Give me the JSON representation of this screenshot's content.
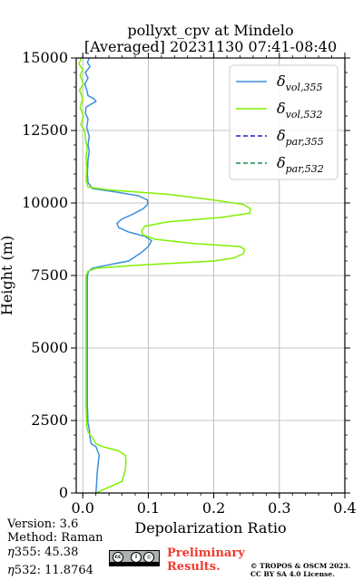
{
  "chart_data": {
    "type": "line",
    "title_line1": "pollyxt_cpv at Mindelo",
    "title_line2": "[Averaged] 20231130 07:41-08:40",
    "xlabel": "Depolarization Ratio",
    "ylabel": "Height (m)",
    "xlim": [
      -0.01,
      0.4
    ],
    "ylim": [
      0,
      15000
    ],
    "xticks": [
      0.0,
      0.1,
      0.2,
      0.3,
      0.4
    ],
    "xtick_labels": [
      "0.0",
      "0.1",
      "0.2",
      "0.3",
      "0.4"
    ],
    "yticks": [
      0,
      2500,
      5000,
      7500,
      10000,
      12500,
      15000
    ],
    "ytick_labels": [
      "0",
      "2500",
      "5000",
      "7500",
      "10000",
      "12500",
      "15000"
    ],
    "grid": true,
    "legend_position": "top-right",
    "series": [
      {
        "legend_base": "δ",
        "legend_sub": "vol,355",
        "color": "#3a8fe0",
        "style": "solid",
        "points": [
          [
            0.02,
            0
          ],
          [
            0.021,
            300
          ],
          [
            0.022,
            700
          ],
          [
            0.024,
            1100
          ],
          [
            0.025,
            1300
          ],
          [
            0.02,
            1600
          ],
          [
            0.013,
            1700
          ],
          [
            0.011,
            1900
          ],
          [
            0.01,
            2200
          ],
          [
            0.008,
            2400
          ],
          [
            0.007,
            3000
          ],
          [
            0.007,
            4000
          ],
          [
            0.007,
            5000
          ],
          [
            0.007,
            6000
          ],
          [
            0.007,
            7000
          ],
          [
            0.007,
            7500
          ],
          [
            0.009,
            7650
          ],
          [
            0.015,
            7750
          ],
          [
            0.035,
            7850
          ],
          [
            0.07,
            8000
          ],
          [
            0.09,
            8300
          ],
          [
            0.1,
            8500
          ],
          [
            0.105,
            8700
          ],
          [
            0.095,
            8850
          ],
          [
            0.07,
            9000
          ],
          [
            0.055,
            9150
          ],
          [
            0.052,
            9300
          ],
          [
            0.06,
            9450
          ],
          [
            0.075,
            9600
          ],
          [
            0.092,
            9800
          ],
          [
            0.099,
            9950
          ],
          [
            0.099,
            10100
          ],
          [
            0.085,
            10250
          ],
          [
            0.045,
            10400
          ],
          [
            0.015,
            10500
          ],
          [
            0.008,
            10700
          ],
          [
            0.007,
            11000
          ],
          [
            0.008,
            11500
          ],
          [
            0.01,
            11800
          ],
          [
            0.008,
            12000
          ],
          [
            0.01,
            12300
          ],
          [
            0.006,
            12600
          ],
          [
            0.008,
            12900
          ],
          [
            0.004,
            13100
          ],
          [
            0.005,
            13300
          ],
          [
            0.012,
            13400
          ],
          [
            0.02,
            13500
          ],
          [
            0.017,
            13600
          ],
          [
            0.008,
            13700
          ],
          [
            0.006,
            13900
          ],
          [
            0.003,
            14100
          ],
          [
            0.008,
            14300
          ],
          [
            0.004,
            14500
          ],
          [
            0.011,
            14700
          ],
          [
            0.007,
            14850
          ],
          [
            0.01,
            15000
          ]
        ]
      },
      {
        "legend_base": "δ",
        "legend_sub": "vol,532",
        "color": "#7ff000",
        "style": "solid",
        "points": [
          [
            0.02,
            0
          ],
          [
            0.035,
            150
          ],
          [
            0.06,
            400
          ],
          [
            0.065,
            800
          ],
          [
            0.066,
            1100
          ],
          [
            0.065,
            1300
          ],
          [
            0.055,
            1450
          ],
          [
            0.03,
            1600
          ],
          [
            0.02,
            1700
          ],
          [
            0.015,
            1900
          ],
          [
            0.008,
            2100
          ],
          [
            0.006,
            2300
          ],
          [
            0.005,
            3000
          ],
          [
            0.005,
            4000
          ],
          [
            0.005,
            5000
          ],
          [
            0.005,
            6000
          ],
          [
            0.005,
            7000
          ],
          [
            0.005,
            7500
          ],
          [
            0.008,
            7650
          ],
          [
            0.02,
            7750
          ],
          [
            0.08,
            7850
          ],
          [
            0.16,
            7950
          ],
          [
            0.2,
            8000
          ],
          [
            0.23,
            8100
          ],
          [
            0.245,
            8250
          ],
          [
            0.247,
            8400
          ],
          [
            0.24,
            8500
          ],
          [
            0.17,
            8600
          ],
          [
            0.11,
            8750
          ],
          [
            0.092,
            8900
          ],
          [
            0.09,
            9050
          ],
          [
            0.095,
            9200
          ],
          [
            0.13,
            9350
          ],
          [
            0.21,
            9500
          ],
          [
            0.255,
            9650
          ],
          [
            0.256,
            9800
          ],
          [
            0.245,
            9950
          ],
          [
            0.2,
            10100
          ],
          [
            0.13,
            10300
          ],
          [
            0.04,
            10450
          ],
          [
            0.008,
            10550
          ],
          [
            0.005,
            10800
          ],
          [
            0.006,
            11200
          ],
          [
            0.005,
            11600
          ],
          [
            0.007,
            11900
          ],
          [
            0.004,
            12200
          ],
          [
            0.003,
            12500
          ],
          [
            -0.003,
            12700
          ],
          [
            0.001,
            13000
          ],
          [
            -0.004,
            13300
          ],
          [
            0.0,
            13600
          ],
          [
            -0.005,
            13900
          ],
          [
            0.001,
            14100
          ],
          [
            -0.004,
            14400
          ],
          [
            0.0,
            14600
          ],
          [
            -0.006,
            14800
          ],
          [
            -0.002,
            15000
          ]
        ]
      },
      {
        "legend_base": "δ",
        "legend_sub": "par,355",
        "color": "#1f1fc8",
        "style": "dashed",
        "points": []
      },
      {
        "legend_base": "δ",
        "legend_sub": "par,532",
        "color": "#1a8a4a",
        "style": "dashed",
        "points": []
      }
    ]
  },
  "footer": {
    "version": "Version: 3.6",
    "method": "Method: Raman",
    "eta355_sym": "η",
    "eta355_sub": "355",
    "eta355_value": ": 45.38",
    "eta532_sym": "η",
    "eta532_sub": "532",
    "eta532_value": ": 11.8764",
    "preliminary_line1": "Preliminary",
    "preliminary_line2": "Results.",
    "copyright_line1": "© TROPOS & OSCM 2023.",
    "copyright_line2": "CC BY SA 4.0 License."
  },
  "license_badge": {
    "circle1": "cc",
    "circle2": "i",
    "circle3": "◎",
    "left_text": "BY",
    "right_text": "SA"
  }
}
